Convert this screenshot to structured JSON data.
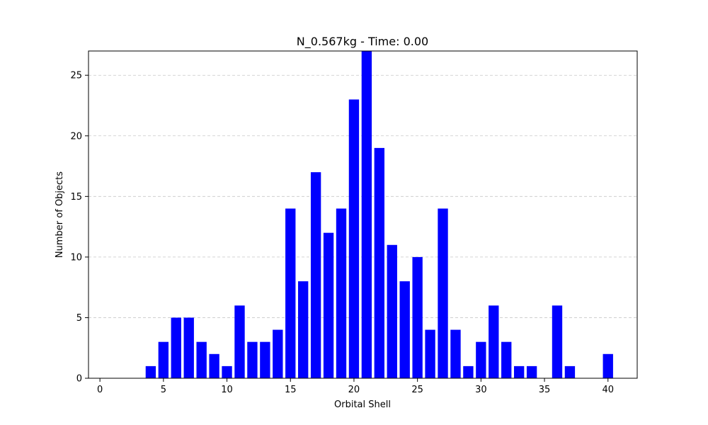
{
  "chart_data": {
    "type": "bar",
    "title": "N_0.567kg - Time: 0.00",
    "xlabel": "Orbital Shell",
    "ylabel": "Number of Objects",
    "x": [
      4,
      5,
      6,
      7,
      8,
      9,
      10,
      11,
      12,
      13,
      14,
      15,
      16,
      17,
      18,
      19,
      20,
      21,
      22,
      23,
      24,
      25,
      26,
      27,
      28,
      29,
      30,
      31,
      32,
      33,
      34,
      36,
      37,
      40
    ],
    "values": [
      1,
      3,
      5,
      5,
      3,
      2,
      1,
      6,
      3,
      3,
      4,
      14,
      8,
      17,
      12,
      14,
      23,
      27,
      19,
      11,
      8,
      10,
      4,
      14,
      4,
      1,
      3,
      6,
      3,
      1,
      1,
      6,
      1,
      2
    ],
    "xlim": [
      -0.9,
      42.3
    ],
    "ylim": [
      0,
      27
    ],
    "xticks": [
      0,
      5,
      10,
      15,
      20,
      25,
      30,
      35,
      40
    ],
    "yticks": [
      0,
      5,
      10,
      15,
      20,
      25
    ],
    "bar_color": "#0000ff",
    "grid": "y-axis dashed"
  }
}
